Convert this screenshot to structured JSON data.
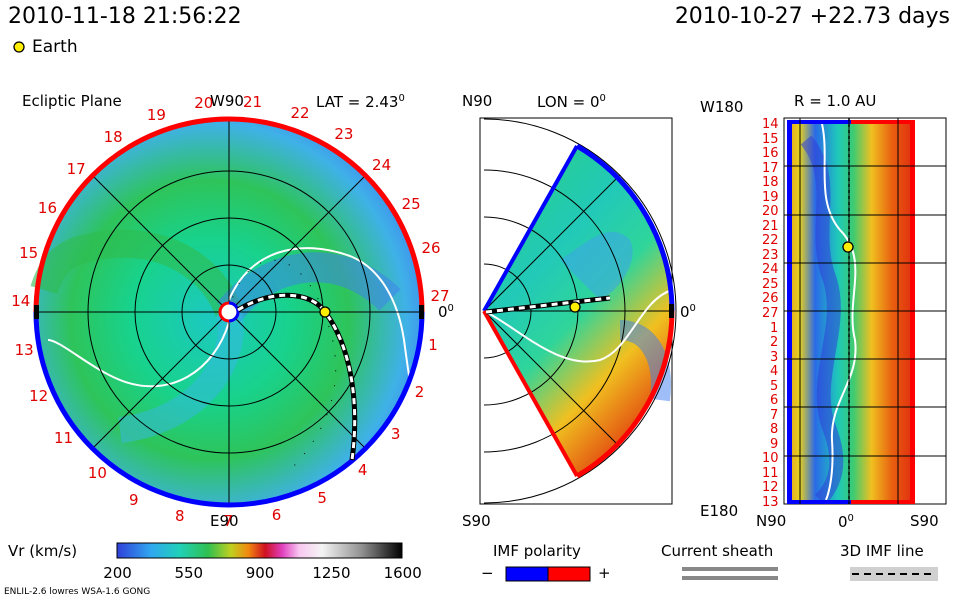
{
  "header": {
    "datetime": "2010-11-18 21:56:22",
    "run_info": "2010-10-27 +22.73 days",
    "earth_legend": "Earth"
  },
  "panels": {
    "ecliptic": {
      "title": "Ecliptic Plane",
      "top_label": "W90",
      "bottom_label": "E90",
      "right_label": "0",
      "right_label_sup": "0",
      "lat_label": "LAT = 2.43",
      "lat_sup": "0"
    },
    "meridional": {
      "top_label": "N90",
      "bottom_label": "S90",
      "lon_label": "LON = 0",
      "lon_sup": "0",
      "right_label": "0",
      "right_label_sup": "0"
    },
    "radial": {
      "title": "R = 1.0 AU",
      "top_left": "W180",
      "bottom_left": "E180",
      "x_ticks": [
        "N90",
        "0",
        "S90"
      ],
      "x_tick_sup": "0",
      "y_ticks": [
        "14",
        "15",
        "16",
        "17",
        "18",
        "19",
        "20",
        "21",
        "22",
        "23",
        "24",
        "25",
        "26",
        "27",
        "1",
        "2",
        "3",
        "4",
        "5",
        "6",
        "7",
        "8",
        "9",
        "10",
        "11",
        "12",
        "13"
      ]
    }
  },
  "chart_data": {
    "type": "heatmap",
    "ecliptic_day_labels": [
      "1",
      "2",
      "3",
      "4",
      "5",
      "6",
      "7",
      "8",
      "9",
      "10",
      "11",
      "12",
      "13",
      "14",
      "15",
      "16",
      "17",
      "18",
      "19",
      "20",
      "21",
      "22",
      "23",
      "24",
      "25",
      "26",
      "27"
    ],
    "colorbar": {
      "label": "Vr (km/s)",
      "ticks": [
        200,
        550,
        900,
        1250,
        1600
      ],
      "range": [
        200,
        1600
      ]
    },
    "earth_position": {
      "longitude_deg": 0,
      "latitude_deg": 2.43,
      "radius_au": 1.0
    }
  },
  "legend": {
    "imf_polarity": "IMF polarity",
    "minus": "−",
    "plus": "+",
    "current_sheath": "Current sheath",
    "imf_line": "3D IMF line",
    "neg_color": "#0000ff",
    "pos_color": "#ff0000"
  },
  "footer": {
    "model_info": "ENLIL-2.6 lowres WSA-1.6 GONG"
  }
}
